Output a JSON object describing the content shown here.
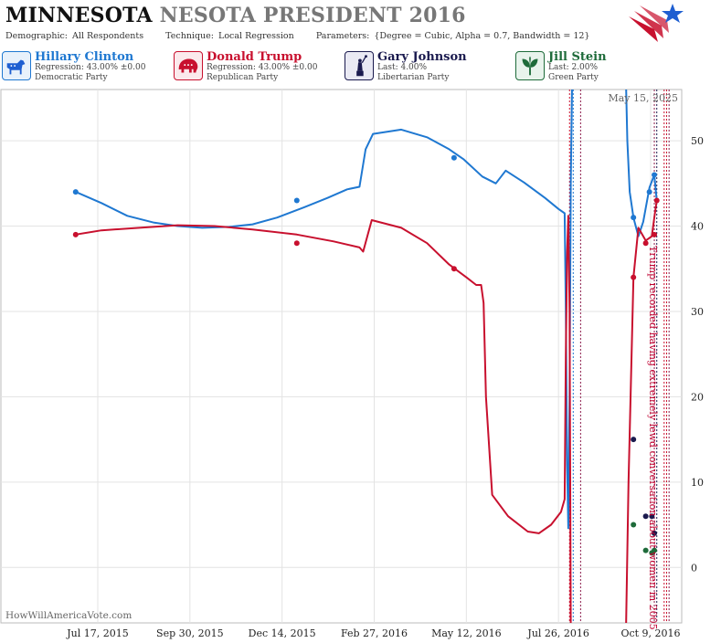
{
  "header": {
    "title_state": "MINNESOTA",
    "title_rest": "NESOTA PRESIDENT 2016",
    "demographic_label": "Demographic:",
    "demographic_value": "All Respondents",
    "technique_label": "Technique:",
    "technique_value": "Local Regression",
    "parameters_label": "Parameters:",
    "parameters_value": "{Degree = Cubic, Alpha = 0.7, Bandwidth = 12}"
  },
  "candidates": [
    {
      "name": "Hillary Clinton",
      "stat": "Regression: 43.00% ±0.00",
      "party": "Democratic Party",
      "color": "#1f78d1",
      "icon": "donkey-icon"
    },
    {
      "name": "Donald Trump",
      "stat": "Regression: 43.00% ±0.00",
      "party": "Republican Party",
      "color": "#c8102e",
      "icon": "elephant-icon"
    },
    {
      "name": "Gary Johnson",
      "stat": "Last: 4.00%",
      "party": "Libertarian Party",
      "color": "#1a1a4e",
      "icon": "statue-of-liberty-icon"
    },
    {
      "name": "Jill Stein",
      "stat": "Last: 2.00%",
      "party": "Green Party",
      "color": "#1e6b3a",
      "icon": "leaf-icon"
    }
  ],
  "date_stamp": "May 15, 2025",
  "credit": "HowWillAmericaVote.com",
  "chart_data": {
    "type": "line",
    "x_unit": "date",
    "ylim": [
      -6.5,
      56
    ],
    "yticks": [
      0,
      10,
      20,
      30,
      40,
      50
    ],
    "xticks": [
      "Jul 17, 2015",
      "Sep 30, 2015",
      "Dec 14, 2015",
      "Feb 27, 2016",
      "May 12, 2016",
      "Jul 26, 2016",
      "Oct 9, 2016"
    ],
    "annotation": "Trump recorded having extremely lewd conversation about women in 2005",
    "series": [
      {
        "name": "Hillary Clinton",
        "color": "#1f78d1",
        "line": [
          [
            "2015-06-29",
            44.0
          ],
          [
            "2015-07-20",
            42.7
          ],
          [
            "2015-08-10",
            41.2
          ],
          [
            "2015-09-01",
            40.4
          ],
          [
            "2015-09-20",
            40.0
          ],
          [
            "2015-10-10",
            39.8
          ],
          [
            "2015-11-01",
            39.9
          ],
          [
            "2015-11-20",
            40.2
          ],
          [
            "2015-12-10",
            41.0
          ],
          [
            "2016-01-01",
            42.2
          ],
          [
            "2016-01-20",
            43.3
          ],
          [
            "2016-02-05",
            44.3
          ],
          [
            "2016-02-15",
            44.6
          ],
          [
            "2016-02-20",
            49.0
          ],
          [
            "2016-02-26",
            50.8
          ],
          [
            "2016-03-20",
            51.3
          ],
          [
            "2016-04-10",
            50.4
          ],
          [
            "2016-04-28",
            49.0
          ],
          [
            "2016-05-10",
            47.8
          ],
          [
            "2016-05-25",
            45.8
          ],
          [
            "2016-06-05",
            45.0
          ],
          [
            "2016-06-13",
            46.5
          ],
          [
            "2016-06-28",
            45.1
          ],
          [
            "2016-07-15",
            43.3
          ],
          [
            "2016-07-26",
            42.0
          ],
          [
            "2016-07-31",
            41.5
          ],
          [
            "2016-08-01",
            30.0
          ],
          [
            "2016-08-02",
            12.0
          ],
          [
            "2016-08-03",
            4.6
          ],
          [
            "2016-08-04",
            20.0
          ],
          [
            "2016-08-05",
            45.0
          ],
          [
            "2016-08-06",
            56.5
          ]
        ],
        "line2": [
          [
            "2016-09-19",
            56.5
          ],
          [
            "2016-09-20",
            50.0
          ],
          [
            "2016-09-22",
            44.0
          ],
          [
            "2016-09-25",
            41.0
          ],
          [
            "2016-09-29",
            38.8
          ],
          [
            "2016-10-03",
            40.5
          ],
          [
            "2016-10-08",
            44.5
          ],
          [
            "2016-10-12",
            46.0
          ],
          [
            "2016-10-14",
            43.0
          ]
        ],
        "points": [
          [
            "2015-06-29",
            44
          ],
          [
            "2015-12-26",
            43
          ],
          [
            "2016-05-02",
            48
          ],
          [
            "2016-09-25",
            41
          ],
          [
            "2016-10-08",
            44
          ],
          [
            "2016-10-12",
            46
          ]
        ]
      },
      {
        "name": "Donald Trump",
        "color": "#c8102e",
        "line": [
          [
            "2015-06-29",
            39.0
          ],
          [
            "2015-07-20",
            39.5
          ],
          [
            "2015-08-20",
            39.8
          ],
          [
            "2015-09-20",
            40.1
          ],
          [
            "2015-10-20",
            40.0
          ],
          [
            "2015-11-20",
            39.6
          ],
          [
            "2015-12-26",
            39.0
          ],
          [
            "2016-01-25",
            38.2
          ],
          [
            "2016-02-15",
            37.5
          ],
          [
            "2016-02-18",
            37.0
          ],
          [
            "2016-02-25",
            40.7
          ],
          [
            "2016-03-20",
            39.8
          ],
          [
            "2016-04-10",
            38.0
          ],
          [
            "2016-04-28",
            35.5
          ],
          [
            "2016-05-12",
            34.0
          ],
          [
            "2016-05-20",
            33.1
          ],
          [
            "2016-05-24",
            33.1
          ],
          [
            "2016-05-26",
            31.0
          ],
          [
            "2016-05-28",
            20.0
          ],
          [
            "2016-06-02",
            8.5
          ],
          [
            "2016-06-15",
            6.0
          ],
          [
            "2016-07-01",
            4.2
          ],
          [
            "2016-07-10",
            4.0
          ],
          [
            "2016-07-20",
            5.0
          ],
          [
            "2016-07-28",
            6.5
          ],
          [
            "2016-07-31",
            8.0
          ],
          [
            "2016-08-01",
            25.0
          ],
          [
            "2016-08-02",
            37.0
          ],
          [
            "2016-08-03",
            41.2
          ],
          [
            "2016-08-04",
            30.0
          ],
          [
            "2016-08-05",
            -7.0
          ]
        ],
        "line2": [
          [
            "2016-09-19",
            -7.0
          ],
          [
            "2016-09-21",
            10.0
          ],
          [
            "2016-09-23",
            22.0
          ],
          [
            "2016-09-25",
            34.0
          ],
          [
            "2016-09-29",
            39.8
          ],
          [
            "2016-10-05",
            38.3
          ],
          [
            "2016-10-10",
            38.8
          ],
          [
            "2016-10-12",
            41.0
          ],
          [
            "2016-10-14",
            43.0
          ]
        ],
        "points": [
          [
            "2015-06-29",
            39
          ],
          [
            "2015-12-26",
            38
          ],
          [
            "2016-05-02",
            35
          ],
          [
            "2016-09-25",
            34
          ],
          [
            "2016-10-05",
            38
          ],
          [
            "2016-10-12",
            39
          ],
          [
            "2016-10-14",
            43
          ]
        ]
      },
      {
        "name": "Gary Johnson",
        "color": "#1a1a4e",
        "points": [
          [
            "2016-09-25",
            15
          ],
          [
            "2016-10-05",
            6
          ],
          [
            "2016-10-10",
            6
          ],
          [
            "2016-10-12",
            4
          ]
        ]
      },
      {
        "name": "Jill Stein",
        "color": "#1e6b3a",
        "points": [
          [
            "2016-09-25",
            5
          ],
          [
            "2016-10-05",
            2
          ],
          [
            "2016-10-10",
            1.7
          ],
          [
            "2016-10-12",
            2
          ]
        ]
      }
    ],
    "event_lines": [
      {
        "date": "2016-08-04",
        "color": "#c8102e"
      },
      {
        "date": "2016-08-07",
        "color": "#1f78d1"
      },
      {
        "date": "2016-08-13",
        "color": "#8a1a4a"
      },
      {
        "date": "2016-10-12",
        "color": "#8a1a4a"
      },
      {
        "date": "2016-10-14",
        "color": "#1a1a4e"
      },
      {
        "date": "2016-10-20",
        "color": "#c8102e"
      },
      {
        "date": "2016-10-22",
        "color": "#c8102e"
      },
      {
        "date": "2016-10-24",
        "color": "#8a1a4a"
      }
    ]
  }
}
